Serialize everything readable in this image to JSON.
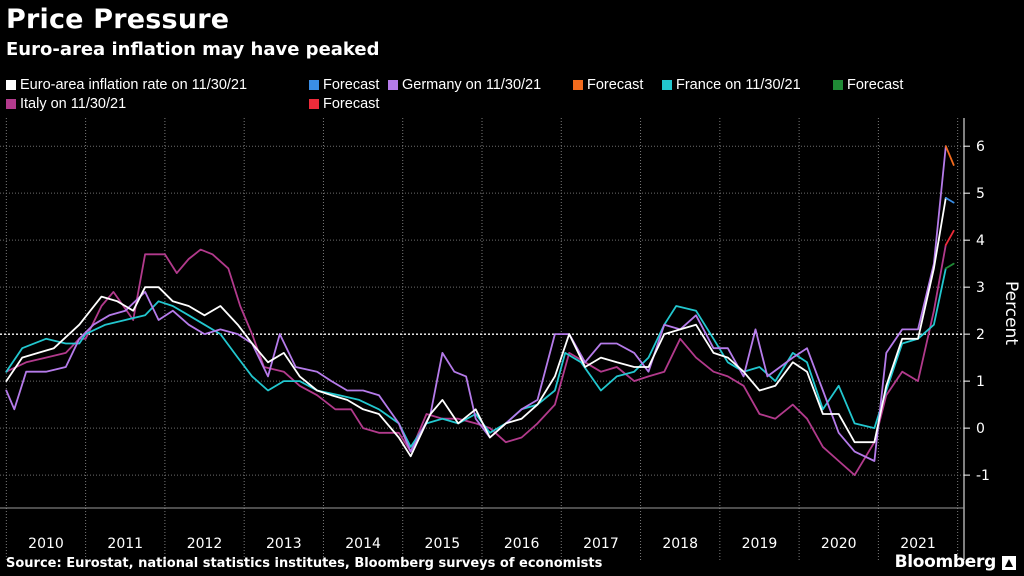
{
  "header": {
    "title": "Price Pressure",
    "subtitle": "Euro-area inflation may have peaked"
  },
  "legend": {
    "row1": [
      {
        "label": "Euro-area inflation rate on 11/30/21",
        "color": "#ffffff"
      },
      {
        "label": "Forecast",
        "color": "#3a8ee6"
      },
      {
        "label": "Germany on 11/30/21",
        "color": "#b57bea"
      },
      {
        "label": "Forecast",
        "color": "#f26b1d"
      },
      {
        "label": "France on 11/30/21",
        "color": "#22c7cf"
      },
      {
        "label": "Forecast",
        "color": "#1f8a35"
      }
    ],
    "row2": [
      {
        "label": "Italy on 11/30/21",
        "color": "#b23a8c"
      },
      {
        "label": "Forecast",
        "color": "#ee2b3a"
      }
    ]
  },
  "footer": {
    "source": "Source: Eurostat, national statistics institutes, Bloomberg surveys of economists",
    "brand": "Bloomberg"
  },
  "chart_data": {
    "type": "line",
    "ylabel": "Percent",
    "ylim": [
      -1.7,
      6.6
    ],
    "yticks": [
      -1,
      0,
      1,
      2,
      3,
      4,
      5,
      6
    ],
    "highlight_line": 2,
    "xlim": [
      2009.92,
      2022.08
    ],
    "years": [
      "2010",
      "2011",
      "2012",
      "2013",
      "2014",
      "2015",
      "2016",
      "2017",
      "2018",
      "2019",
      "2020",
      "2021"
    ],
    "grid": true,
    "series": [
      {
        "name": "Italy on 11/30/21",
        "color": "#b23a8c",
        "points": [
          [
            2010.0,
            1.2
          ],
          [
            2010.25,
            1.4
          ],
          [
            2010.5,
            1.5
          ],
          [
            2010.75,
            1.6
          ],
          [
            2010.92,
            1.9
          ],
          [
            2011.0,
            1.9
          ],
          [
            2011.2,
            2.6
          ],
          [
            2011.35,
            2.9
          ],
          [
            2011.6,
            2.3
          ],
          [
            2011.75,
            3.7
          ],
          [
            2012.0,
            3.7
          ],
          [
            2012.15,
            3.3
          ],
          [
            2012.3,
            3.6
          ],
          [
            2012.45,
            3.8
          ],
          [
            2012.6,
            3.7
          ],
          [
            2012.8,
            3.4
          ],
          [
            2012.95,
            2.6
          ],
          [
            2013.1,
            2.0
          ],
          [
            2013.25,
            1.3
          ],
          [
            2013.5,
            1.2
          ],
          [
            2013.7,
            0.9
          ],
          [
            2013.92,
            0.7
          ],
          [
            2014.15,
            0.4
          ],
          [
            2014.35,
            0.4
          ],
          [
            2014.5,
            0.0
          ],
          [
            2014.7,
            -0.1
          ],
          [
            2014.95,
            -0.1
          ],
          [
            2015.1,
            -0.5
          ],
          [
            2015.3,
            0.3
          ],
          [
            2015.5,
            0.2
          ],
          [
            2015.7,
            0.2
          ],
          [
            2015.92,
            0.1
          ],
          [
            2016.1,
            0.0
          ],
          [
            2016.3,
            -0.3
          ],
          [
            2016.5,
            -0.2
          ],
          [
            2016.7,
            0.1
          ],
          [
            2016.92,
            0.5
          ],
          [
            2017.1,
            1.6
          ],
          [
            2017.3,
            1.4
          ],
          [
            2017.5,
            1.2
          ],
          [
            2017.7,
            1.3
          ],
          [
            2017.92,
            1.0
          ],
          [
            2018.1,
            1.1
          ],
          [
            2018.3,
            1.2
          ],
          [
            2018.5,
            1.9
          ],
          [
            2018.7,
            1.5
          ],
          [
            2018.92,
            1.2
          ],
          [
            2019.1,
            1.1
          ],
          [
            2019.3,
            0.9
          ],
          [
            2019.5,
            0.3
          ],
          [
            2019.7,
            0.2
          ],
          [
            2019.92,
            0.5
          ],
          [
            2020.1,
            0.2
          ],
          [
            2020.3,
            -0.4
          ],
          [
            2020.5,
            -0.7
          ],
          [
            2020.7,
            -1.0
          ],
          [
            2020.95,
            -0.3
          ],
          [
            2021.1,
            0.7
          ],
          [
            2021.3,
            1.2
          ],
          [
            2021.5,
            1.0
          ],
          [
            2021.7,
            2.5
          ],
          [
            2021.85,
            3.9
          ]
        ]
      },
      {
        "name": "France on 11/30/21",
        "color": "#22c7cf",
        "points": [
          [
            2010.0,
            1.2
          ],
          [
            2010.2,
            1.7
          ],
          [
            2010.5,
            1.9
          ],
          [
            2010.75,
            1.8
          ],
          [
            2010.92,
            1.8
          ],
          [
            2011.0,
            2.0
          ],
          [
            2011.25,
            2.2
          ],
          [
            2011.5,
            2.3
          ],
          [
            2011.75,
            2.4
          ],
          [
            2011.92,
            2.7
          ],
          [
            2012.1,
            2.6
          ],
          [
            2012.3,
            2.4
          ],
          [
            2012.5,
            2.2
          ],
          [
            2012.7,
            2.0
          ],
          [
            2012.92,
            1.5
          ],
          [
            2013.1,
            1.1
          ],
          [
            2013.3,
            0.8
          ],
          [
            2013.5,
            1.0
          ],
          [
            2013.7,
            1.0
          ],
          [
            2013.92,
            0.8
          ],
          [
            2014.2,
            0.7
          ],
          [
            2014.45,
            0.6
          ],
          [
            2014.7,
            0.4
          ],
          [
            2014.95,
            0.1
          ],
          [
            2015.1,
            -0.4
          ],
          [
            2015.3,
            0.1
          ],
          [
            2015.5,
            0.2
          ],
          [
            2015.7,
            0.1
          ],
          [
            2015.92,
            0.3
          ],
          [
            2016.1,
            -0.1
          ],
          [
            2016.3,
            0.1
          ],
          [
            2016.5,
            0.4
          ],
          [
            2016.7,
            0.5
          ],
          [
            2016.92,
            0.8
          ],
          [
            2017.05,
            1.6
          ],
          [
            2017.25,
            1.4
          ],
          [
            2017.5,
            0.8
          ],
          [
            2017.7,
            1.1
          ],
          [
            2017.92,
            1.2
          ],
          [
            2018.1,
            1.5
          ],
          [
            2018.3,
            2.2
          ],
          [
            2018.45,
            2.6
          ],
          [
            2018.7,
            2.5
          ],
          [
            2018.92,
            1.9
          ],
          [
            2019.1,
            1.4
          ],
          [
            2019.3,
            1.2
          ],
          [
            2019.5,
            1.3
          ],
          [
            2019.7,
            1.0
          ],
          [
            2019.92,
            1.6
          ],
          [
            2020.1,
            1.4
          ],
          [
            2020.3,
            0.4
          ],
          [
            2020.5,
            0.9
          ],
          [
            2020.7,
            0.1
          ],
          [
            2020.95,
            0.0
          ],
          [
            2021.1,
            0.8
          ],
          [
            2021.3,
            1.8
          ],
          [
            2021.5,
            1.9
          ],
          [
            2021.7,
            2.2
          ],
          [
            2021.85,
            3.4
          ]
        ]
      },
      {
        "name": "Germany on 11/30/21",
        "color": "#b57bea",
        "points": [
          [
            2010.0,
            0.8
          ],
          [
            2010.1,
            0.4
          ],
          [
            2010.25,
            1.2
          ],
          [
            2010.5,
            1.2
          ],
          [
            2010.75,
            1.3
          ],
          [
            2010.92,
            1.9
          ],
          [
            2011.1,
            2.2
          ],
          [
            2011.3,
            2.4
          ],
          [
            2011.5,
            2.5
          ],
          [
            2011.75,
            2.9
          ],
          [
            2011.92,
            2.3
          ],
          [
            2012.1,
            2.5
          ],
          [
            2012.3,
            2.2
          ],
          [
            2012.5,
            2.0
          ],
          [
            2012.7,
            2.1
          ],
          [
            2012.92,
            2.0
          ],
          [
            2013.1,
            1.8
          ],
          [
            2013.3,
            1.1
          ],
          [
            2013.45,
            2.0
          ],
          [
            2013.65,
            1.3
          ],
          [
            2013.92,
            1.2
          ],
          [
            2014.1,
            1.0
          ],
          [
            2014.3,
            0.8
          ],
          [
            2014.5,
            0.8
          ],
          [
            2014.7,
            0.7
          ],
          [
            2014.95,
            0.1
          ],
          [
            2015.1,
            -0.5
          ],
          [
            2015.35,
            0.3
          ],
          [
            2015.5,
            1.6
          ],
          [
            2015.65,
            1.2
          ],
          [
            2015.8,
            1.1
          ],
          [
            2015.92,
            0.2
          ],
          [
            2016.1,
            -0.2
          ],
          [
            2016.3,
            0.1
          ],
          [
            2016.5,
            0.4
          ],
          [
            2016.7,
            0.6
          ],
          [
            2016.92,
            2.0
          ],
          [
            2017.1,
            2.0
          ],
          [
            2017.3,
            1.4
          ],
          [
            2017.5,
            1.8
          ],
          [
            2017.7,
            1.8
          ],
          [
            2017.92,
            1.6
          ],
          [
            2018.1,
            1.2
          ],
          [
            2018.3,
            2.2
          ],
          [
            2018.5,
            2.1
          ],
          [
            2018.7,
            2.4
          ],
          [
            2018.92,
            1.7
          ],
          [
            2019.1,
            1.7
          ],
          [
            2019.3,
            1.1
          ],
          [
            2019.45,
            2.1
          ],
          [
            2019.6,
            1.1
          ],
          [
            2019.92,
            1.5
          ],
          [
            2020.1,
            1.7
          ],
          [
            2020.3,
            0.8
          ],
          [
            2020.5,
            -0.1
          ],
          [
            2020.7,
            -0.5
          ],
          [
            2020.95,
            -0.7
          ],
          [
            2021.1,
            1.6
          ],
          [
            2021.3,
            2.1
          ],
          [
            2021.5,
            2.1
          ],
          [
            2021.7,
            3.5
          ],
          [
            2021.85,
            6.0
          ]
        ]
      },
      {
        "name": "Euro-area inflation rate on 11/30/21",
        "color": "#ffffff",
        "points": [
          [
            2010.0,
            1.0
          ],
          [
            2010.2,
            1.5
          ],
          [
            2010.4,
            1.6
          ],
          [
            2010.6,
            1.7
          ],
          [
            2010.92,
            2.2
          ],
          [
            2011.2,
            2.8
          ],
          [
            2011.4,
            2.7
          ],
          [
            2011.6,
            2.5
          ],
          [
            2011.75,
            3.0
          ],
          [
            2011.92,
            3.0
          ],
          [
            2012.1,
            2.7
          ],
          [
            2012.3,
            2.6
          ],
          [
            2012.5,
            2.4
          ],
          [
            2012.7,
            2.6
          ],
          [
            2012.92,
            2.2
          ],
          [
            2013.1,
            1.8
          ],
          [
            2013.3,
            1.4
          ],
          [
            2013.5,
            1.6
          ],
          [
            2013.7,
            1.1
          ],
          [
            2013.92,
            0.8
          ],
          [
            2014.1,
            0.7
          ],
          [
            2014.3,
            0.6
          ],
          [
            2014.5,
            0.4
          ],
          [
            2014.7,
            0.3
          ],
          [
            2014.95,
            -0.2
          ],
          [
            2015.1,
            -0.6
          ],
          [
            2015.35,
            0.3
          ],
          [
            2015.5,
            0.6
          ],
          [
            2015.7,
            0.1
          ],
          [
            2015.92,
            0.4
          ],
          [
            2016.1,
            -0.2
          ],
          [
            2016.3,
            0.1
          ],
          [
            2016.5,
            0.2
          ],
          [
            2016.7,
            0.5
          ],
          [
            2016.92,
            1.1
          ],
          [
            2017.1,
            2.0
          ],
          [
            2017.3,
            1.3
          ],
          [
            2017.5,
            1.5
          ],
          [
            2017.7,
            1.4
          ],
          [
            2017.92,
            1.3
          ],
          [
            2018.1,
            1.3
          ],
          [
            2018.3,
            2.0
          ],
          [
            2018.5,
            2.1
          ],
          [
            2018.7,
            2.2
          ],
          [
            2018.92,
            1.6
          ],
          [
            2019.1,
            1.5
          ],
          [
            2019.3,
            1.2
          ],
          [
            2019.5,
            0.8
          ],
          [
            2019.7,
            0.9
          ],
          [
            2019.92,
            1.4
          ],
          [
            2020.1,
            1.2
          ],
          [
            2020.3,
            0.3
          ],
          [
            2020.5,
            0.3
          ],
          [
            2020.7,
            -0.3
          ],
          [
            2020.95,
            -0.3
          ],
          [
            2021.1,
            0.9
          ],
          [
            2021.3,
            1.9
          ],
          [
            2021.5,
            1.9
          ],
          [
            2021.7,
            3.4
          ],
          [
            2021.85,
            4.9
          ]
        ]
      },
      {
        "name": "Forecast",
        "color": "#f26b1d",
        "points": [
          [
            2021.85,
            6.0
          ],
          [
            2021.95,
            5.6
          ]
        ]
      },
      {
        "name": "Forecast",
        "color": "#3a8ee6",
        "points": [
          [
            2021.85,
            4.9
          ],
          [
            2021.95,
            4.8
          ]
        ]
      },
      {
        "name": "Forecast",
        "color": "#ee2b3a",
        "points": [
          [
            2021.85,
            3.9
          ],
          [
            2021.95,
            4.2
          ]
        ]
      },
      {
        "name": "Forecast",
        "color": "#1f8a35",
        "points": [
          [
            2021.85,
            3.4
          ],
          [
            2021.95,
            3.5
          ]
        ]
      }
    ]
  }
}
